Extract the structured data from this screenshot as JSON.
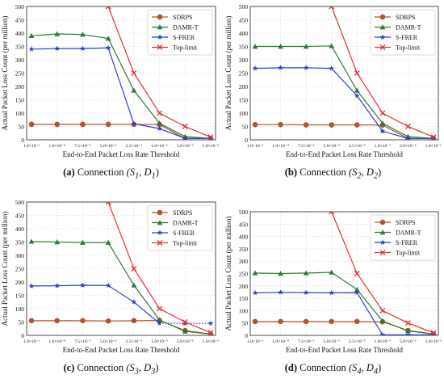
{
  "chart_data": [
    {
      "type": "line",
      "caption": {
        "label": "(a)",
        "text": "Connection",
        "math": "(S",
        "math2": ", D",
        "sub1": "1",
        "sub2": "1",
        "close": ")"
      },
      "ylabel": "Actual Packet Loss Count (per million)",
      "xlabel": "End-to-End Packet Loss Rate Threshold",
      "ylim": [
        0,
        500
      ],
      "yticks": [
        "0",
        "50",
        "100",
        "150",
        "200",
        "250",
        "300",
        "350",
        "400",
        "450",
        "500"
      ],
      "categories": [
        "1.0×10⁻³",
        "1.0×10⁻⁴",
        "7.5×10⁻⁵",
        "5.0×10⁻⁵",
        "2.5×10⁻⁵",
        "1.0×10⁻⁵",
        "5.0×10⁻⁶",
        "1.0×10⁻⁶"
      ],
      "legend_position": "top-right",
      "grid": true,
      "series": [
        {
          "name": "SDRPS",
          "color": "#b5532e",
          "marker": "circle",
          "values": [
            58,
            58,
            58,
            58,
            58,
            57,
            5,
            5
          ]
        },
        {
          "name": "DAMR-T",
          "color": "#2a7d2e",
          "marker": "triangle",
          "values": [
            390,
            397,
            395,
            380,
            185,
            62,
            12,
            5
          ]
        },
        {
          "name": "S-FRER",
          "color": "#2b3fcf",
          "marker": "star",
          "values": [
            340,
            342,
            342,
            345,
            60,
            42,
            5,
            5
          ]
        },
        {
          "name": "Top-limit",
          "color": "#e63030",
          "marker": "x",
          "values": [
            null,
            null,
            null,
            500,
            250,
            100,
            50,
            10
          ]
        }
      ]
    },
    {
      "type": "line",
      "caption": {
        "label": "(b)",
        "text": "Connection",
        "math": "(S",
        "math2": ", D",
        "sub1": "2",
        "sub2": "2",
        "close": ")"
      },
      "ylabel": "Actual Packet Loss Count (per million)",
      "xlabel": "End-to-End Packet Loss Rate Threshold",
      "ylim": [
        0,
        500
      ],
      "yticks": [
        "0",
        "50",
        "100",
        "150",
        "200",
        "250",
        "300",
        "350",
        "400",
        "450",
        "500"
      ],
      "categories": [
        "1.0×10⁻³",
        "1.0×10⁻⁴",
        "7.5×10⁻⁵",
        "5.0×10⁻⁵",
        "2.5×10⁻⁵",
        "1.0×10⁻⁵",
        "5.0×10⁻⁶",
        "1.0×10⁻⁶"
      ],
      "legend_position": "top-right",
      "grid": true,
      "series": [
        {
          "name": "SDRPS",
          "color": "#b5532e",
          "marker": "circle",
          "values": [
            57,
            57,
            56,
            56,
            56,
            55,
            5,
            5
          ]
        },
        {
          "name": "DAMR-T",
          "color": "#2a7d2e",
          "marker": "triangle",
          "values": [
            350,
            350,
            350,
            352,
            185,
            62,
            12,
            5
          ]
        },
        {
          "name": "S-FRER",
          "color": "#2b3fcf",
          "marker": "star",
          "values": [
            268,
            270,
            270,
            268,
            165,
            32,
            5,
            5
          ]
        },
        {
          "name": "Top-limit",
          "color": "#e63030",
          "marker": "x",
          "values": [
            null,
            null,
            null,
            500,
            250,
            100,
            50,
            10
          ]
        }
      ]
    },
    {
      "type": "line",
      "caption": {
        "label": "(c)",
        "text": "Connection",
        "math": "(S",
        "math2": ", D",
        "sub1": "3",
        "sub2": "3",
        "close": ")"
      },
      "ylabel": "Actual Packet Loss Count (per million)",
      "xlabel": "End-to-End Packet Loss Rate Threshold",
      "ylim": [
        0,
        500
      ],
      "yticks": [
        "0",
        "50",
        "100",
        "150",
        "200",
        "250",
        "300",
        "350",
        "400",
        "450",
        "500"
      ],
      "categories": [
        "1.0×10⁻³",
        "1.0×10⁻⁴",
        "7.5×10⁻⁵",
        "5.0×10⁻⁵",
        "2.5×10⁻⁵",
        "1.0×10⁻⁵",
        "5.0×10⁻⁶",
        "1.0×10⁻⁶"
      ],
      "legend_position": "top-right",
      "grid": true,
      "series": [
        {
          "name": "SDRPS",
          "color": "#b5532e",
          "marker": "circle",
          "values": [
            55,
            55,
            55,
            54,
            55,
            56,
            18,
            5
          ]
        },
        {
          "name": "DAMR-T",
          "color": "#2a7d2e",
          "marker": "triangle",
          "values": [
            352,
            350,
            348,
            348,
            188,
            58,
            15,
            5
          ]
        },
        {
          "name": "S-FRER",
          "color": "#2b3fcf",
          "marker": "star",
          "values": [
            185,
            186,
            188,
            187,
            125,
            45,
            45,
            45
          ],
          "dotted_from": 5
        },
        {
          "name": "Top-limit",
          "color": "#e63030",
          "marker": "x",
          "values": [
            null,
            null,
            null,
            500,
            250,
            100,
            50,
            10
          ]
        }
      ]
    },
    {
      "type": "line",
      "caption": {
        "label": "(d)",
        "text": "Connection",
        "math": "(S",
        "math2": ", D",
        "sub1": "4",
        "sub2": "4",
        "close": ")"
      },
      "ylabel": "Actual Packet Loss Count (per million)",
      "xlabel": "End-to-End Packet Loss Rate Threshold",
      "ylim": [
        0,
        500
      ],
      "yticks": [
        "0",
        "50",
        "100",
        "150",
        "200",
        "250",
        "300",
        "350",
        "400",
        "450",
        "500"
      ],
      "categories": [
        "1.0×10⁻³",
        "1.0×10⁻⁴",
        "7.5×10⁻⁵",
        "5.0×10⁻⁵",
        "2.5×10⁻⁵",
        "1.0×10⁻⁵",
        "5.0×10⁻⁶",
        "1.0×10⁻⁶"
      ],
      "legend_position": "top-right",
      "grid": true,
      "series": [
        {
          "name": "SDRPS",
          "color": "#b5532e",
          "marker": "circle",
          "values": [
            56,
            56,
            56,
            56,
            56,
            55,
            20,
            5
          ]
        },
        {
          "name": "DAMR-T",
          "color": "#2a7d2e",
          "marker": "triangle",
          "values": [
            252,
            250,
            252,
            255,
            185,
            58,
            18,
            5
          ]
        },
        {
          "name": "S-FRER",
          "color": "#2b3fcf",
          "marker": "star",
          "values": [
            172,
            174,
            173,
            172,
            173,
            2,
            2,
            2
          ]
        },
        {
          "name": "Top-limit",
          "color": "#e63030",
          "marker": "x",
          "values": [
            null,
            null,
            null,
            500,
            250,
            100,
            50,
            10
          ]
        }
      ]
    }
  ]
}
